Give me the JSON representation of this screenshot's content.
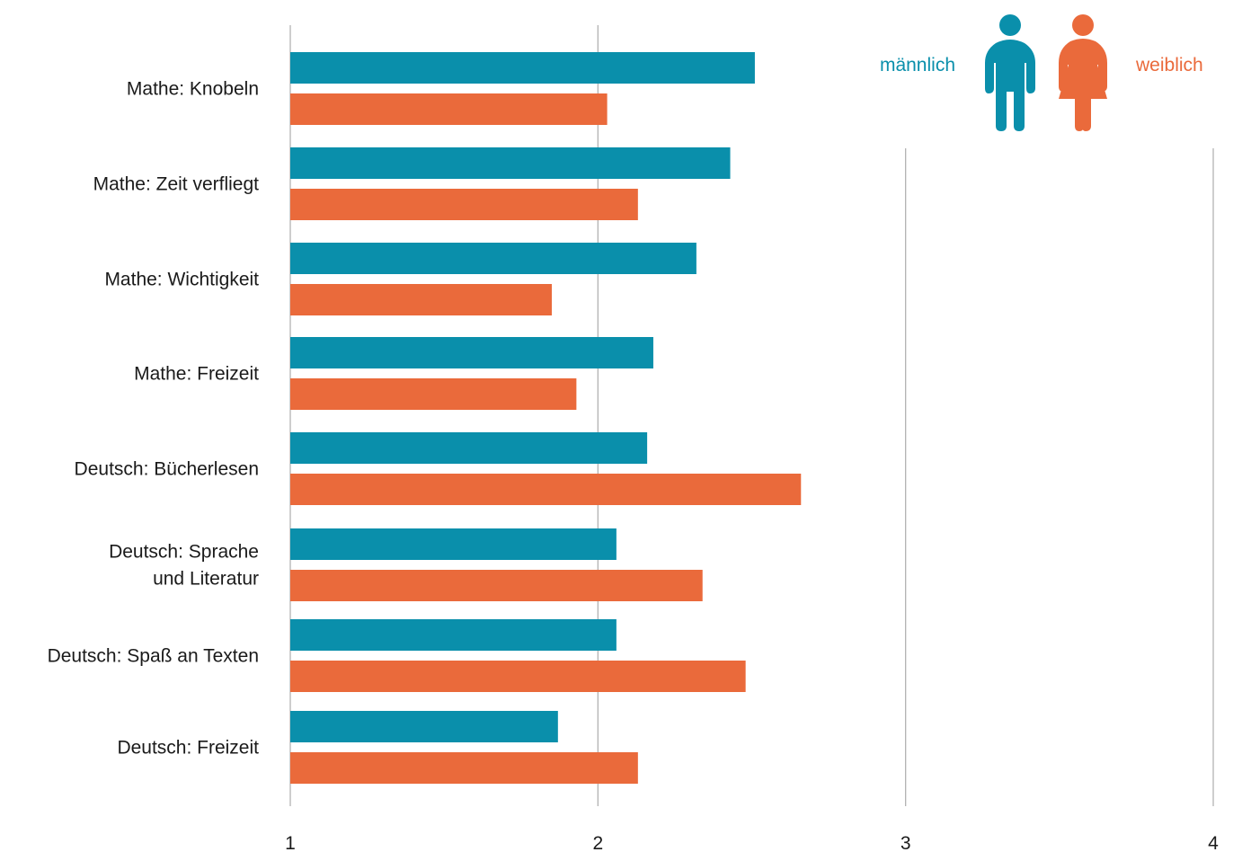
{
  "chart_data": {
    "type": "bar",
    "orientation": "horizontal",
    "categories": [
      [
        "Mathe: Knobeln"
      ],
      [
        "Mathe: Zeit verfliegt"
      ],
      [
        "Mathe: Wichtigkeit"
      ],
      [
        "Mathe: Freizeit"
      ],
      [
        "Deutsch: Bücherlesen"
      ],
      [
        "Deutsch: Sprache",
        "und Literatur"
      ],
      [
        "Deutsch: Spaß an Texten"
      ],
      [
        "Deutsch: Freizeit"
      ]
    ],
    "series": [
      {
        "name": "männlich",
        "color": "#0a8fab",
        "values": [
          2.51,
          2.43,
          2.32,
          2.18,
          2.16,
          2.06,
          2.06,
          1.87
        ]
      },
      {
        "name": "weiblich",
        "color": "#ea6a3b",
        "values": [
          2.03,
          2.13,
          1.85,
          1.93,
          2.66,
          2.34,
          2.48,
          2.13
        ]
      }
    ],
    "xlim": [
      1,
      4
    ],
    "xticks": [
      "1",
      "2",
      "3",
      "4"
    ],
    "grid": true,
    "legend": {
      "position": "top-right",
      "icons": [
        "male-person-icon",
        "female-person-icon"
      ]
    }
  }
}
